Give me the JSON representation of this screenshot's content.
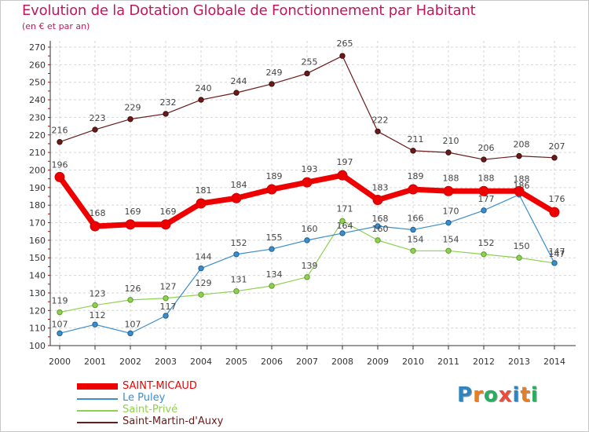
{
  "title": "Evolution de la Dotation Globale de Fonctionnement par Habitant",
  "subtitle": "(en € et par an)",
  "logo_text": "Proxiti",
  "chart_data": {
    "type": "line",
    "title": "Evolution de la Dotation Globale de Fonctionnement par Habitant",
    "subtitle": "(en € et par an)",
    "xlabel": "",
    "ylabel": "",
    "x": [
      "2000",
      "2001",
      "2002",
      "2003",
      "2004",
      "2005",
      "2006",
      "2007",
      "2008",
      "2009",
      "2010",
      "2011",
      "2012",
      "2013",
      "2014"
    ],
    "ylim": [
      100,
      270
    ],
    "yticks": [
      100,
      110,
      120,
      130,
      140,
      150,
      160,
      170,
      180,
      190,
      200,
      210,
      220,
      230,
      240,
      250,
      260,
      270
    ],
    "grid": true,
    "legend_position": "bottom-left",
    "series": [
      {
        "name": "SAINT-MICAUD",
        "color": "#ee0000",
        "values": [
          196,
          168,
          169,
          169,
          181,
          184,
          189,
          193,
          197,
          183,
          189,
          188,
          188,
          188,
          176
        ]
      },
      {
        "name": "Le Puley",
        "color": "#3b8dcc",
        "values": [
          107,
          112,
          107,
          117,
          144,
          152,
          155,
          160,
          164,
          168,
          166,
          170,
          177,
          186,
          147
        ]
      },
      {
        "name": "Saint-Privé",
        "color": "#8fd14f",
        "values": [
          119,
          123,
          126,
          127,
          129,
          131,
          134,
          139,
          171,
          160,
          154,
          154,
          152,
          150,
          147
        ]
      },
      {
        "name": "Saint-Martin-d'Auxy",
        "color": "#6b1a1a",
        "values": [
          216,
          223,
          229,
          232,
          240,
          244,
          249,
          255,
          265,
          222,
          211,
          210,
          206,
          208,
          207
        ]
      }
    ]
  }
}
